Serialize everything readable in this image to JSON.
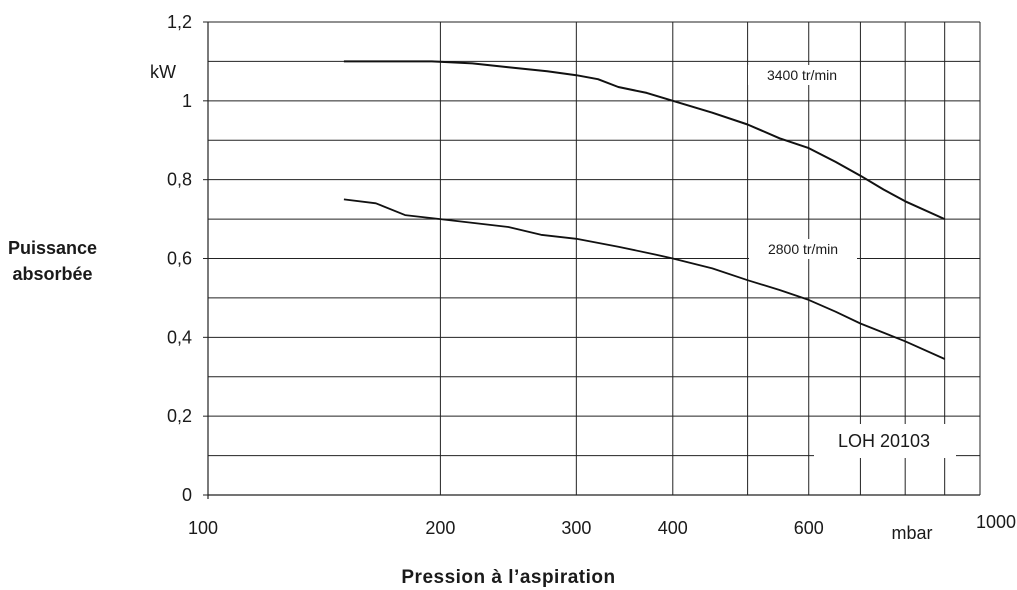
{
  "chart_data": {
    "type": "line",
    "xlabel": "Pression à l’aspiration",
    "ylabel_line1": "Puissance",
    "ylabel_line2": "absorbée",
    "x_unit": "mbar",
    "y_unit": "kW",
    "x_scale": "log",
    "xlim": [
      100,
      1000
    ],
    "ylim": [
      0,
      1.2
    ],
    "grid": true,
    "x_gridlines": [
      200,
      300,
      400,
      500,
      600,
      700,
      800,
      900,
      1000
    ],
    "y_gridlines": [
      0.1,
      0.2,
      0.3,
      0.4,
      0.5,
      0.6,
      0.7,
      0.8,
      0.9,
      1.0,
      1.1,
      1.2
    ],
    "x_ticks": [
      {
        "value": 100,
        "label": "100"
      },
      {
        "value": 200,
        "label": "200"
      },
      {
        "value": 300,
        "label": "300"
      },
      {
        "value": 400,
        "label": "400"
      },
      {
        "value": 600,
        "label": "600"
      },
      {
        "value": 1000,
        "label": "1000"
      }
    ],
    "y_ticks": [
      {
        "value": 0,
        "label": "0"
      },
      {
        "value": 0.2,
        "label": "0,2"
      },
      {
        "value": 0.4,
        "label": "0,4"
      },
      {
        "value": 0.6,
        "label": "0,6"
      },
      {
        "value": 0.8,
        "label": "0,8"
      },
      {
        "value": 1.0,
        "label": "1"
      },
      {
        "value": 1.2,
        "label": "1,2"
      }
    ],
    "series": [
      {
        "name": "3400 tr/min",
        "x": [
          150,
          195,
          220,
          245,
          275,
          300,
          320,
          340,
          370,
          400,
          450,
          500,
          550,
          600,
          650,
          700,
          750,
          800,
          900
        ],
        "y": [
          1.1,
          1.1,
          1.095,
          1.085,
          1.075,
          1.065,
          1.055,
          1.035,
          1.02,
          1.0,
          0.97,
          0.94,
          0.905,
          0.88,
          0.845,
          0.81,
          0.775,
          0.745,
          0.7
        ]
      },
      {
        "name": "2800 tr/min",
        "x": [
          150,
          165,
          180,
          200,
          245,
          270,
          300,
          340,
          380,
          400,
          450,
          500,
          550,
          600,
          650,
          700,
          800,
          900
        ],
        "y": [
          0.75,
          0.74,
          0.71,
          0.7,
          0.68,
          0.66,
          0.65,
          0.63,
          0.61,
          0.6,
          0.575,
          0.545,
          0.52,
          0.495,
          0.465,
          0.435,
          0.39,
          0.345
        ]
      }
    ],
    "annotation": "LOH 20103"
  }
}
